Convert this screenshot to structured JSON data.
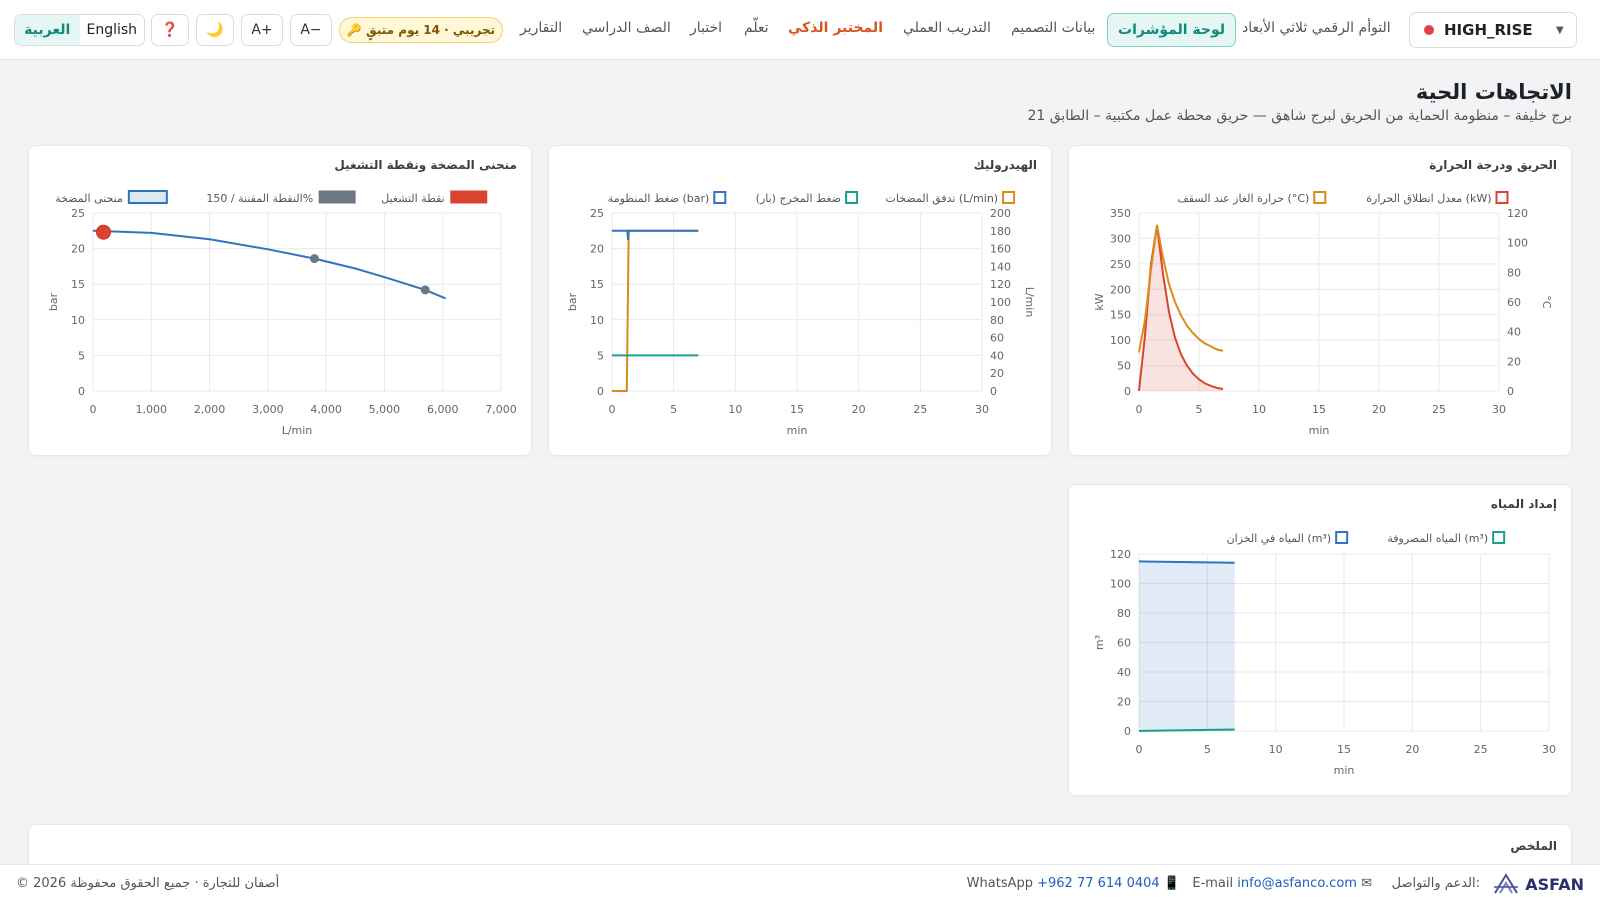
{
  "header": {
    "project": "HIGH_RISE",
    "nav": {
      "twin": "التوأم الرقمي ثلاثي الأبعاد",
      "dashboard": "لوحة المؤشرات",
      "design": "بيانات التصميم",
      "training": "التدريب العملي",
      "lab": "المختبر الذكي",
      "learn": "تعلّم",
      "test": "اختبار",
      "classroom": "الصف الدراسي",
      "reports": "التقارير"
    },
    "trial_badge": "🔑 تجريبي · 14 يوم متبقٍ",
    "font_minus": "A−",
    "font_plus": "A+",
    "theme_icon": "🌙",
    "help_icon": "❓",
    "lang_en": "English",
    "lang_ar": "العربية"
  },
  "page": {
    "title": "الاتجاهات الحية",
    "subtitle": "برج خليفة – منظومة الحماية من الحريق لبرج شاهق — حريق محطة عمل مكتبية – الطابق 21",
    "summary_title": "الملخص"
  },
  "colors": {
    "accent": "#0f8a7d",
    "red": "#d9432f",
    "orange": "#d98c1a",
    "blue": "#2e74c0",
    "teal": "#17a08f",
    "gray": "#6c7784"
  },
  "footer": {
    "brand": "ASFAN",
    "support_label": "الدعم والتواصل:",
    "email_label": "E-mail",
    "email": "info@asfanco.com",
    "whatsapp_label": "WhatsApp",
    "phone": "+962 77 614 0404",
    "copyright": "© 2026 أصفان للتجارة · جميع الحقوق محفوظة"
  },
  "chart_data": [
    {
      "type": "line",
      "title": "الحريق ودرجة الحرارة",
      "xlabel": "min",
      "ylabel": "kW",
      "y2label": "°C",
      "xlim": [
        0,
        30
      ],
      "ylim": [
        0,
        350
      ],
      "y2lim": [
        0,
        120
      ],
      "xticks": [
        "0",
        "5",
        "10",
        "15",
        "20",
        "25",
        "30"
      ],
      "yticks": [
        "0",
        "50",
        "100",
        "150",
        "200",
        "250",
        "300",
        "350"
      ],
      "y2ticks": [
        "0",
        "20",
        "40",
        "60",
        "80",
        "100",
        "120"
      ],
      "legend": [
        "معدل انطلاق الحرارة (kW)",
        "حرارة الغاز عند السقف (°C)"
      ],
      "series": [
        {
          "name": "معدل انطلاق الحرارة (kW)",
          "axis": "left",
          "fill": true,
          "color": "#d9432f",
          "x": [
            0,
            0.5,
            1.0,
            1.5,
            2,
            2.5,
            3,
            3.5,
            4,
            4.5,
            5,
            5.5,
            6,
            6.5,
            7
          ],
          "y": [
            0,
            110,
            250,
            325,
            230,
            155,
            105,
            72,
            50,
            34,
            23,
            15,
            10,
            6,
            4
          ]
        },
        {
          "name": "حرارة الغاز عند السقف (°C)",
          "axis": "right",
          "fill": false,
          "color": "#d98c1a",
          "x": [
            0,
            0.5,
            1.0,
            1.5,
            2,
            2.5,
            3,
            3.5,
            4,
            4.5,
            5,
            5.5,
            6,
            6.5,
            7
          ],
          "y": [
            26,
            48,
            82,
            112,
            90,
            72,
            60,
            51,
            44,
            39,
            35,
            32,
            30,
            28,
            27
          ]
        }
      ]
    },
    {
      "type": "line",
      "title": "الهيدروليك",
      "xlabel": "min",
      "ylabel": "bar",
      "y2label": "L/min",
      "xlim": [
        0,
        30
      ],
      "ylim": [
        0,
        25
      ],
      "y2lim": [
        0,
        200
      ],
      "xticks": [
        "0",
        "5",
        "10",
        "15",
        "20",
        "25",
        "30"
      ],
      "yticks": [
        "0",
        "5",
        "10",
        "15",
        "20",
        "25"
      ],
      "y2ticks": [
        "0",
        "20",
        "40",
        "60",
        "80",
        "100",
        "120",
        "140",
        "160",
        "180",
        "200"
      ],
      "legend": [
        "تدفق المضخات (L/min)",
        "ضغط المخرج (بار)",
        "ضغط المنظومة (bar)"
      ],
      "series": [
        {
          "name": "تدفق المضخات (L/min)",
          "axis": "right",
          "color": "#d98c1a",
          "x": [
            0,
            1.2,
            1.35,
            1.45,
            7
          ],
          "y": [
            0,
            0,
            180,
            180,
            180
          ]
        },
        {
          "name": "ضغط المخرج (بار)",
          "axis": "left",
          "color": "#17a08f",
          "x": [
            0,
            7
          ],
          "y": [
            5,
            5
          ]
        },
        {
          "name": "ضغط المنظومة (bar)",
          "axis": "left",
          "color": "#2e74c0",
          "x": [
            0,
            1.25,
            1.3,
            1.35,
            7
          ],
          "y": [
            22.5,
            22.5,
            21.2,
            22.5,
            22.5
          ]
        }
      ]
    },
    {
      "type": "line",
      "title": "منحنى المضخة ونقطة التشغيل",
      "xlabel": "L/min",
      "ylabel": "bar",
      "xlim": [
        0,
        7000
      ],
      "ylim": [
        0,
        25
      ],
      "xticks": [
        "0",
        "1,000",
        "2,000",
        "3,000",
        "4,000",
        "5,000",
        "6,000",
        "7,000"
      ],
      "yticks": [
        "0",
        "5",
        "10",
        "15",
        "20",
        "25"
      ],
      "legend": [
        "نقطة التشغيل",
        "النقطة المقننة / 150%",
        "منحنى المضخة"
      ],
      "series": [
        {
          "name": "منحنى المضخة",
          "color": "#2e74c0",
          "x": [
            0,
            1000,
            2000,
            3000,
            3800,
            4500,
            5000,
            5700,
            6050
          ],
          "y": [
            22.5,
            22.2,
            21.3,
            19.9,
            18.6,
            17.2,
            16.0,
            14.2,
            13.0
          ]
        },
        {
          "name": "النقطة المقننة / 150%",
          "type": "scatter",
          "color": "#6c7784",
          "x": [
            3800,
            5700
          ],
          "y": [
            18.6,
            14.2
          ]
        },
        {
          "name": "نقطة التشغيل",
          "type": "scatter",
          "color": "#d9432f",
          "x": [
            180
          ],
          "y": [
            22.3
          ]
        }
      ]
    },
    {
      "type": "area",
      "title": "إمداد المياه",
      "xlabel": "min",
      "ylabel": "m³",
      "xlim": [
        0,
        30
      ],
      "ylim": [
        0,
        120
      ],
      "xticks": [
        "0",
        "5",
        "10",
        "15",
        "20",
        "25",
        "30"
      ],
      "yticks": [
        "0",
        "20",
        "40",
        "60",
        "80",
        "100",
        "120"
      ],
      "legend": [
        "المياه المصروفة (m³)",
        "المياه في الخزان (m³)"
      ],
      "series": [
        {
          "name": "المياه في الخزان (m³)",
          "color": "#2e74c0",
          "fill": true,
          "x": [
            0,
            7
          ],
          "y": [
            115,
            114
          ]
        },
        {
          "name": "المياه المصروفة (m³)",
          "color": "#17a08f",
          "fill": false,
          "x": [
            0,
            7
          ],
          "y": [
            0,
            1
          ]
        }
      ]
    }
  ]
}
